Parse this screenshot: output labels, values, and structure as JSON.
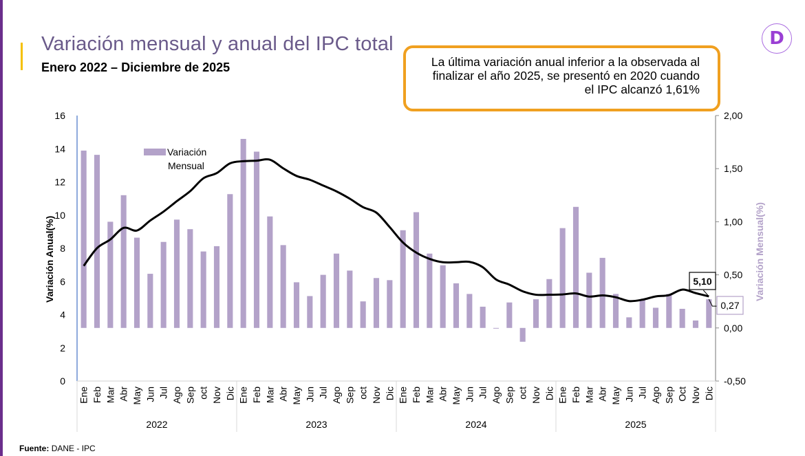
{
  "header": {
    "title": "Variación mensual y anual del IPC total",
    "subtitle": "Enero 2022 – Diciembre de 2025"
  },
  "callout": {
    "text_lines": [
      "La última variación anual inferior  a la observada al",
      "finalizar el año 2025, se presentó en 2020 cuando",
      "el IPC alcanzó 1,61%"
    ],
    "border_color": "#f0a020"
  },
  "logo": {
    "letter": "D",
    "icon": "dane-logo-icon",
    "color": "#9a3fd4"
  },
  "source": {
    "label": "Fuente:",
    "value": "DANE - IPC"
  },
  "colors": {
    "bars": "#b3a2c9",
    "line": "#000000",
    "accent_yellow": "#f5c000",
    "sidebar_purple": "#6b2e8c",
    "title": "#6a5a8a"
  },
  "chart_data": {
    "type": "bar+line",
    "title": "Variación mensual y anual del IPC total",
    "subtitle": "Enero 2022 – Diciembre de 2025",
    "years": [
      "2022",
      "2023",
      "2024",
      "2025"
    ],
    "months_by_year": [
      [
        "Ene",
        "Feb",
        "Mar",
        "Abr",
        "May",
        "Jun",
        "Jul",
        "Ago",
        "Sep",
        "oct",
        "Nov",
        "Dic"
      ],
      [
        "Ene",
        "Feb",
        "Mar",
        "Abr",
        "May",
        "Jun",
        "Jul",
        "Ago",
        "Sep",
        "oct",
        "Nov",
        "Dic"
      ],
      [
        "Ene",
        "Feb",
        "Mar",
        "Abr",
        "May",
        "Jun",
        "Jul",
        "Ago",
        "Sep",
        "oct",
        "Nov",
        "Dic"
      ],
      [
        "Ene",
        "Feb",
        "Mar",
        "Abr",
        "May",
        "Jun",
        "Jul",
        "Ago",
        "Sep",
        "Oct",
        "Nov",
        "Dic"
      ]
    ],
    "left_axis": {
      "label": "Variación Anual(%)",
      "min": 0,
      "max": 16,
      "ticks": [
        "0",
        "2",
        "4",
        "6",
        "8",
        "10",
        "12",
        "14",
        "16"
      ]
    },
    "right_axis": {
      "label": "Variación Mensual(%)",
      "min": -0.5,
      "max": 2.0,
      "ticks": [
        "-0,50",
        "0,00",
        "0,50",
        "1,00",
        "1,50",
        "2,00"
      ]
    },
    "legend": {
      "label_line1": "Variación",
      "label_line2": "Mensual",
      "placement": "top-left"
    },
    "series": [
      {
        "name": "Variación Mensual",
        "type": "bar",
        "axis": "right",
        "values": [
          1.67,
          1.63,
          1.0,
          1.25,
          0.85,
          0.51,
          0.81,
          1.02,
          0.93,
          0.72,
          0.77,
          1.26,
          1.78,
          1.66,
          1.05,
          0.78,
          0.43,
          0.3,
          0.5,
          0.7,
          0.54,
          0.25,
          0.47,
          0.45,
          0.92,
          1.09,
          0.7,
          0.59,
          0.42,
          0.32,
          0.2,
          0.0,
          0.24,
          -0.13,
          0.27,
          0.46,
          0.94,
          1.14,
          0.52,
          0.66,
          0.32,
          0.1,
          0.27,
          0.19,
          0.32,
          0.18,
          0.07,
          0.27
        ]
      },
      {
        "name": "Variación Anual",
        "type": "line",
        "axis": "left",
        "values": [
          6.94,
          8.01,
          8.53,
          9.23,
          9.07,
          9.67,
          10.21,
          10.84,
          11.44,
          12.22,
          12.53,
          13.12,
          13.25,
          13.28,
          13.34,
          12.82,
          12.36,
          12.13,
          11.78,
          11.43,
          10.99,
          10.48,
          10.15,
          9.28,
          8.35,
          7.74,
          7.36,
          7.16,
          7.16,
          7.18,
          6.86,
          6.12,
          5.81,
          5.41,
          5.2,
          5.2,
          5.22,
          5.28,
          5.09,
          5.16,
          5.05,
          4.82,
          4.9,
          5.1,
          5.18,
          5.51,
          5.3,
          5.1
        ]
      }
    ],
    "annotations": [
      {
        "series": "Variación Anual",
        "point": "Dic 2025",
        "text": "5,10"
      },
      {
        "series": "Variación Mensual",
        "point": "Dic 2025",
        "text": "0,27"
      }
    ]
  }
}
